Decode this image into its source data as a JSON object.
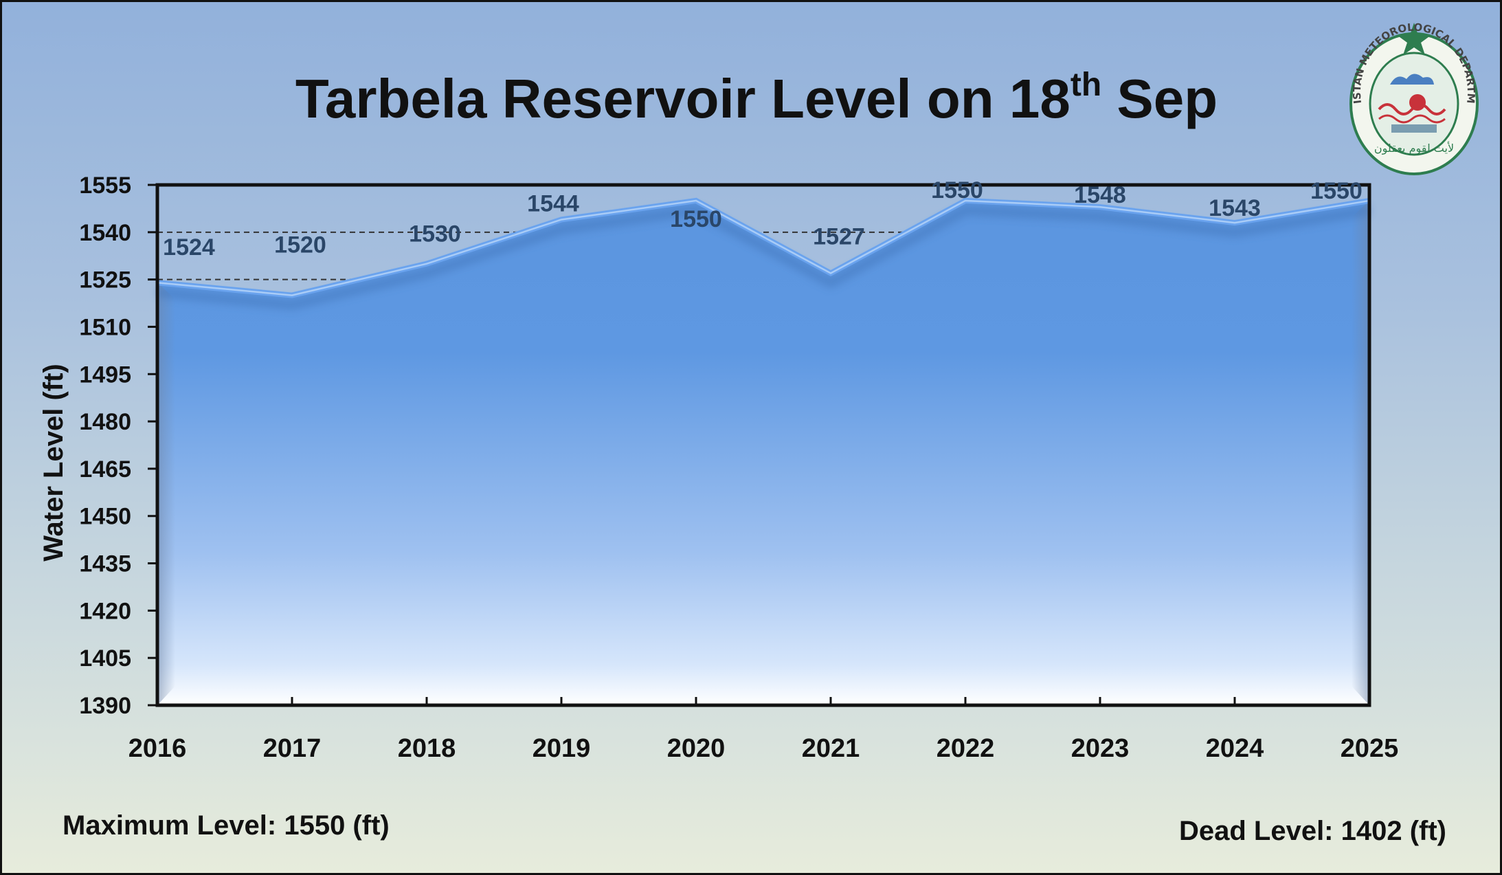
{
  "logo": {
    "text": "PAKISTAN METEOROLOGICAL DEPARTMENT",
    "urdu": "لأيت لقوم يعقلون"
  },
  "notes": {
    "max_level": "Maximum Level: 1550 (ft)",
    "dead_level": "Dead Level: 1402 (ft)"
  },
  "colors": {
    "area_top": "#5b95df",
    "area_bottom": "#ffffff",
    "line": "#6aa3ee",
    "label": "#2a4668"
  },
  "chart_data": {
    "type": "area",
    "title": "Tarbela Reservoir Level on 18",
    "title_superscript": "th",
    "title_suffix": " Sep",
    "xlabel": "",
    "ylabel": "Water Level (ft)",
    "categories": [
      "2016",
      "2017",
      "2018",
      "2019",
      "2020",
      "2021",
      "2022",
      "2023",
      "2024",
      "2025"
    ],
    "values": [
      1524,
      1520,
      1530,
      1544,
      1550,
      1527,
      1550,
      1548,
      1543,
      1550
    ],
    "data_labels": [
      "1524",
      "1520",
      "1530",
      "1544",
      "1550",
      "1527",
      "1550",
      "1548",
      "1543",
      "1550"
    ],
    "ylim": [
      1390,
      1555
    ],
    "yticks": [
      1555,
      1540,
      1525,
      1510,
      1495,
      1480,
      1465,
      1450,
      1435,
      1420,
      1405,
      1390
    ],
    "reference_lines": [
      1540,
      1525
    ],
    "grid": false,
    "legend": "none"
  }
}
